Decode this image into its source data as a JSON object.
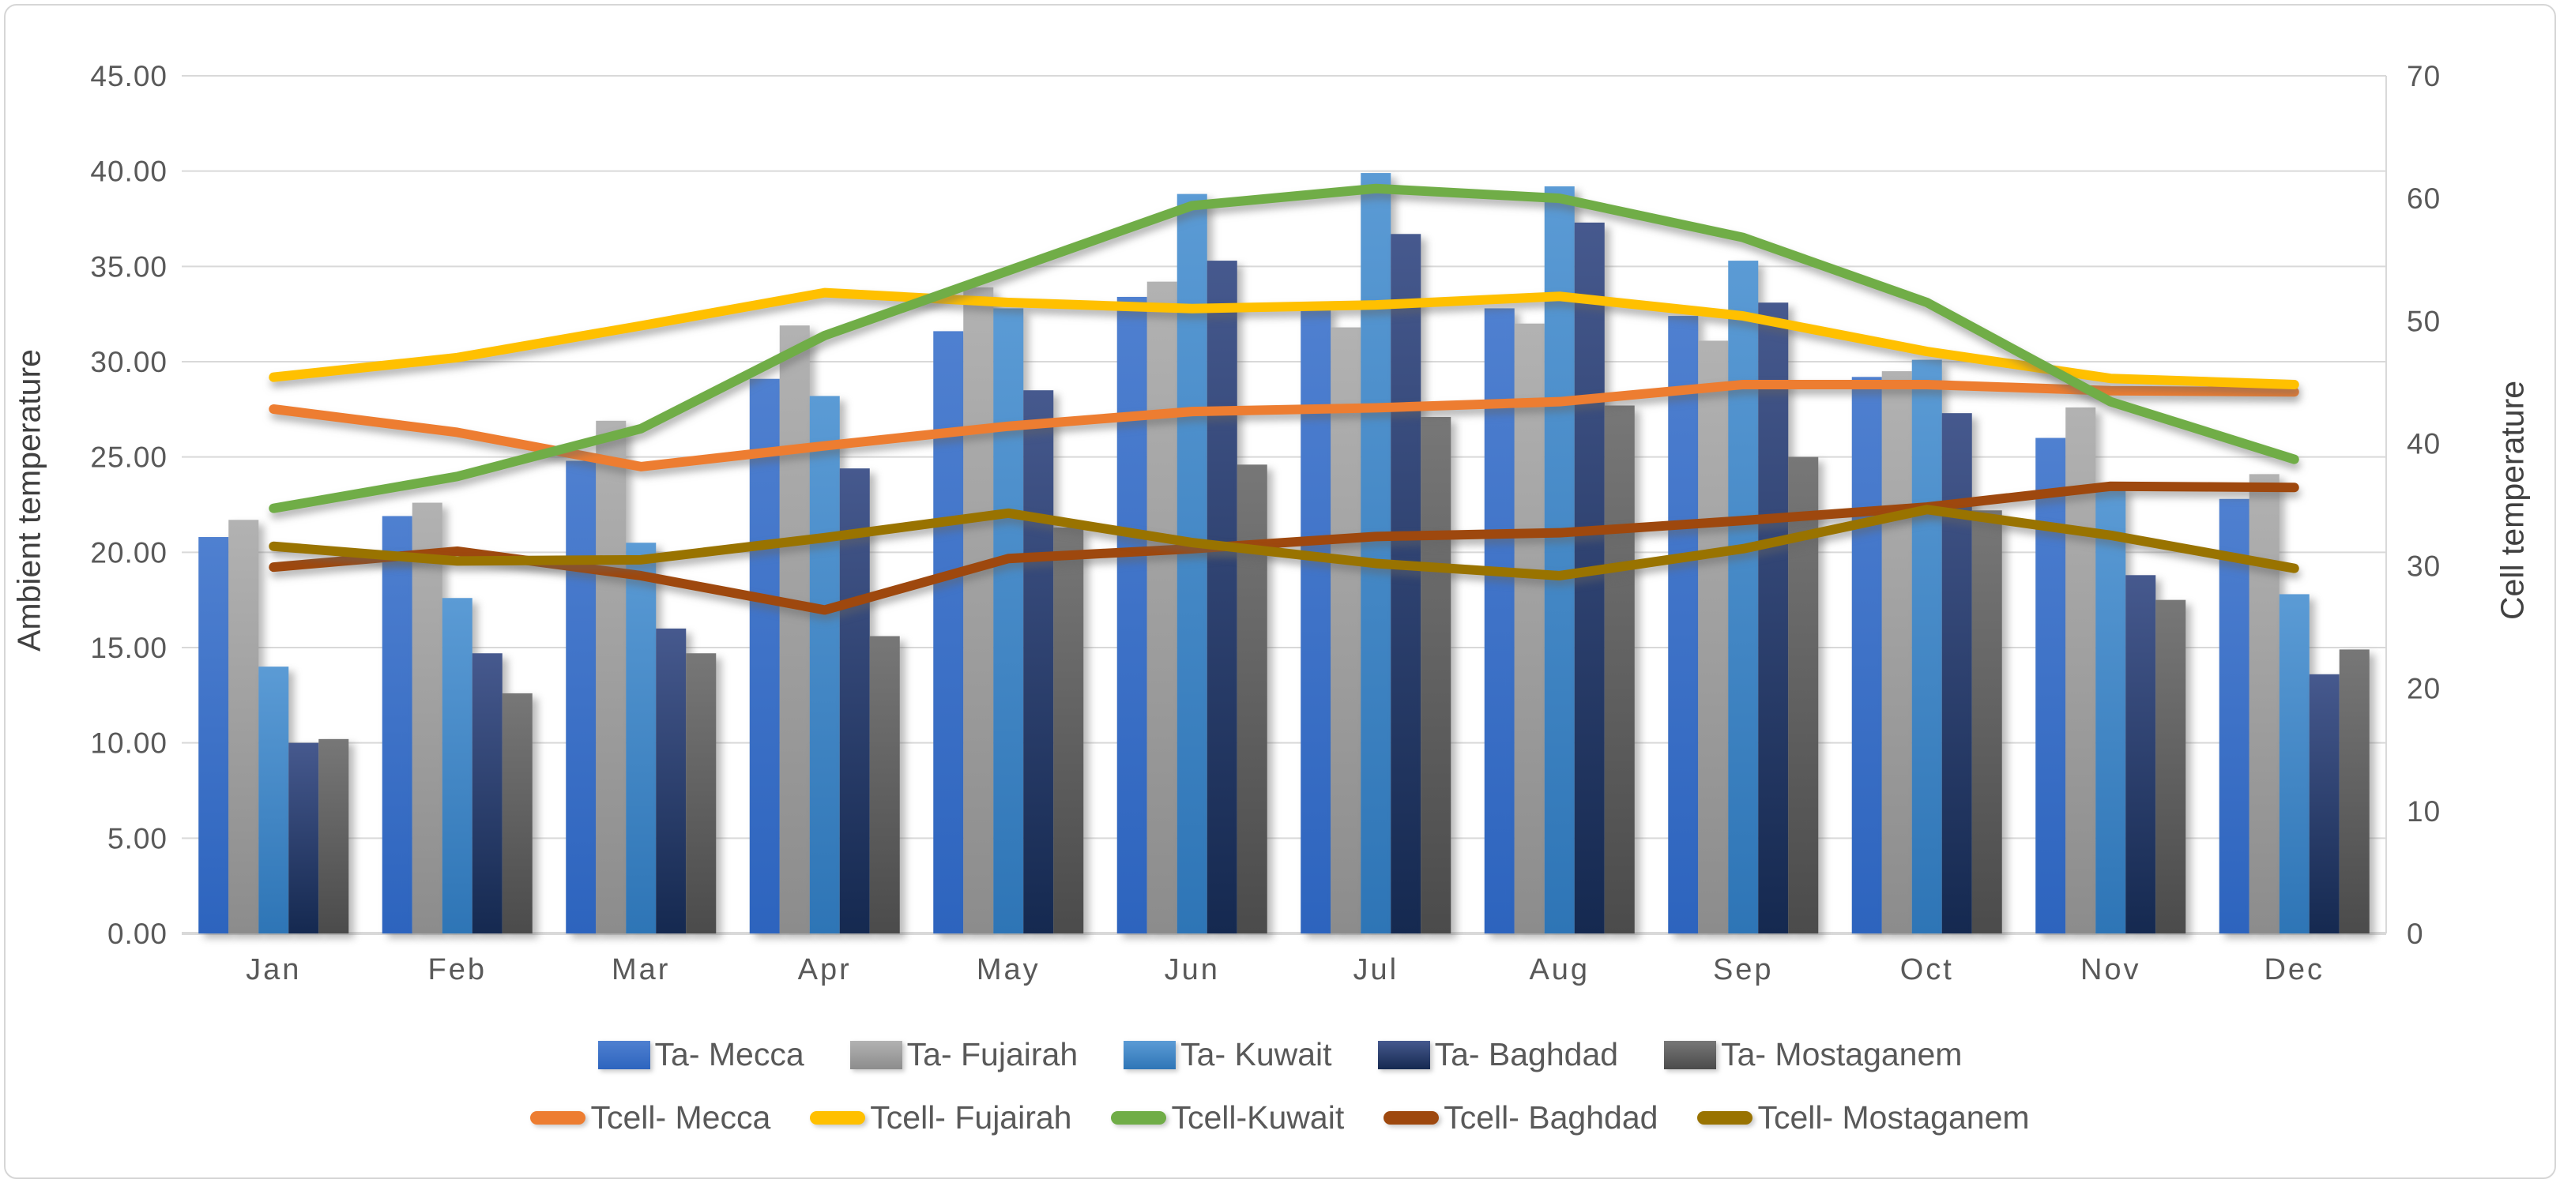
{
  "page": {
    "background": "#FFFFFF",
    "border_color": "#D6D6D6",
    "text_color": "#595959",
    "gridline_color": "#D9D9D9"
  },
  "chart_data": {
    "type": "bar+line",
    "title": "",
    "categories": [
      "Jan",
      "Feb",
      "Mar",
      "Apr",
      "May",
      "Jun",
      "Jul",
      "Aug",
      "Sep",
      "Oct",
      "Nov",
      "Dec"
    ],
    "grid": true,
    "legend_position": "bottom-two-rows",
    "left_axis": {
      "title": "Ambient temperature",
      "min": 0,
      "max": 45,
      "step": 5,
      "tick_decimals": 2
    },
    "right_axis": {
      "title": "Cell temperature",
      "min": 0,
      "max": 70,
      "step": 10,
      "tick_decimals": 0
    },
    "bar_series": [
      {
        "name": "Ta- Mecca",
        "axis": "left",
        "color_top": "#4F80D0",
        "color_bottom": "#2D64BE",
        "values": [
          20.8,
          21.9,
          24.8,
          29.1,
          31.6,
          33.4,
          32.8,
          32.8,
          32.4,
          29.2,
          26.0,
          22.8
        ]
      },
      {
        "name": "Ta- Fujairah",
        "axis": "left",
        "color_top": "#B2B2B2",
        "color_bottom": "#8C8C8C",
        "values": [
          21.7,
          22.6,
          26.9,
          31.9,
          33.9,
          34.2,
          31.8,
          32.0,
          31.1,
          29.5,
          27.6,
          24.1
        ]
      },
      {
        "name": "Ta- Kuwait",
        "axis": "left",
        "color_top": "#5B9BD5",
        "color_bottom": "#2E75B6",
        "values": [
          14.0,
          17.6,
          20.5,
          28.2,
          32.8,
          38.8,
          39.9,
          39.2,
          35.3,
          30.1,
          23.4,
          17.8
        ]
      },
      {
        "name": "Ta- Baghdad",
        "axis": "left",
        "color_top": "#46598E",
        "color_bottom": "#152950",
        "values": [
          10.0,
          14.7,
          16.0,
          24.4,
          28.5,
          35.3,
          36.7,
          37.3,
          33.1,
          27.3,
          18.8,
          13.6
        ]
      },
      {
        "name": "Ta- Mostaganem",
        "axis": "left",
        "color_top": "#777777",
        "color_bottom": "#4B4B4B",
        "values": [
          10.2,
          12.6,
          14.7,
          15.6,
          21.3,
          24.6,
          27.1,
          27.7,
          25.0,
          22.2,
          17.5,
          14.9
        ]
      }
    ],
    "line_series": [
      {
        "name": "Tcell- Mecca",
        "axis": "right",
        "color": "#ED7D31",
        "values": [
          42.8,
          40.9,
          38.1,
          39.8,
          41.4,
          42.6,
          42.9,
          43.4,
          44.8,
          44.8,
          44.3,
          44.2
        ]
      },
      {
        "name": "Tcell- Fujairah",
        "axis": "right",
        "color": "#FFC000",
        "values": [
          45.4,
          47.0,
          49.6,
          52.3,
          51.5,
          51.0,
          51.3,
          52.0,
          50.4,
          47.5,
          45.3,
          44.8
        ]
      },
      {
        "name": "Tcell-Kuwait",
        "axis": "right",
        "color": "#70AD47",
        "values": [
          34.7,
          37.3,
          41.2,
          48.8,
          54.1,
          59.4,
          60.8,
          60.0,
          56.8,
          51.5,
          43.4,
          38.7
        ]
      },
      {
        "name": "Tcell- Baghdad",
        "axis": "right",
        "color": "#9E480E",
        "values": [
          29.9,
          31.2,
          29.2,
          26.4,
          30.6,
          31.4,
          32.4,
          32.7,
          33.7,
          34.8,
          36.5,
          36.4
        ]
      },
      {
        "name": "Tcell- Mostaganem",
        "axis": "right",
        "color": "#997300",
        "values": [
          31.6,
          30.4,
          30.5,
          32.3,
          34.3,
          31.9,
          30.2,
          29.2,
          31.4,
          34.6,
          32.5,
          29.8
        ]
      }
    ]
  }
}
